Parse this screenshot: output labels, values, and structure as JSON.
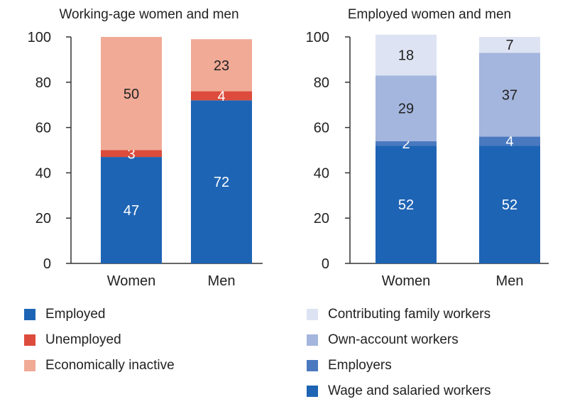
{
  "colors": {
    "employed": "#1e64b4",
    "unemployed": "#dc4b3c",
    "inactive": "#f0aa96",
    "family": "#dde3f2",
    "own_account": "#a4b6dd",
    "employers": "#4a79c0",
    "wage": "#1e64b4",
    "axis": "#333333"
  },
  "chart_data": [
    {
      "type": "bar",
      "stacked": true,
      "title": "Working-age women and men",
      "categories": [
        "Women",
        "Men"
      ],
      "ylim": [
        0,
        100
      ],
      "yticks": [
        "0",
        "20",
        "40",
        "60",
        "80",
        "100"
      ],
      "grid": false,
      "legend_position": "bottom",
      "series": [
        {
          "name": "Employed",
          "color_key": "employed",
          "values": [
            47,
            72
          ]
        },
        {
          "name": "Unemployed",
          "color_key": "unemployed",
          "values": [
            3,
            4
          ]
        },
        {
          "name": "Economically inactive",
          "color_key": "inactive",
          "values": [
            50,
            23
          ]
        }
      ]
    },
    {
      "type": "bar",
      "stacked": true,
      "title": "Employed women and men",
      "categories": [
        "Women",
        "Men"
      ],
      "ylim": [
        0,
        100
      ],
      "yticks": [
        "0",
        "20",
        "40",
        "60",
        "80",
        "100"
      ],
      "grid": false,
      "legend_position": "bottom",
      "series": [
        {
          "name": "Wage and salaried workers",
          "color_key": "wage",
          "values": [
            52,
            52
          ]
        },
        {
          "name": "Employers",
          "color_key": "employers",
          "values": [
            2,
            4
          ]
        },
        {
          "name": "Own-account workers",
          "color_key": "own_account",
          "values": [
            29,
            37
          ]
        },
        {
          "name": "Contributing family workers",
          "color_key": "family",
          "values": [
            18,
            7
          ]
        }
      ]
    }
  ]
}
